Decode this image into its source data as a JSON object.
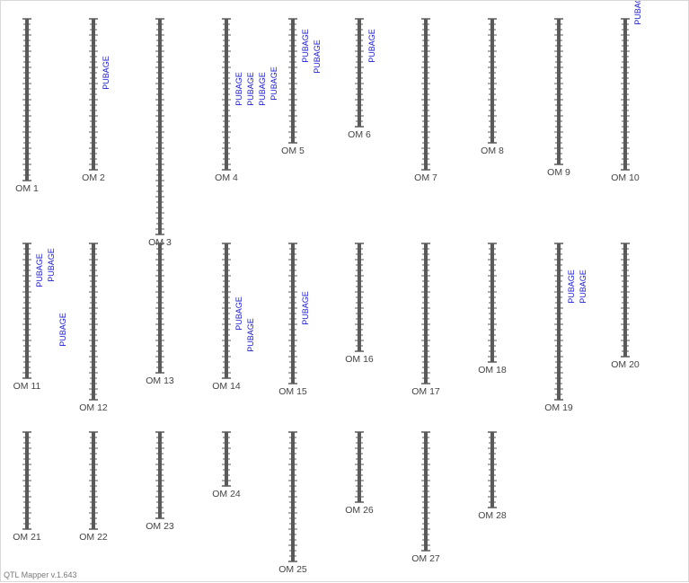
{
  "colors": {
    "chromosome": "#5a5a5a",
    "qtl_label": "#1a1adb",
    "label": "#444444"
  },
  "footer": "QTL Mapper v.1.643",
  "linkage_groups": [
    {
      "name": "OM 1",
      "length": 30,
      "qtls": []
    },
    {
      "name": "OM 2",
      "length": 28,
      "qtls": [
        {
          "label": "PUBAGE",
          "pos": 10,
          "lane": 0
        }
      ]
    },
    {
      "name": "OM 3",
      "length": 40,
      "qtls": []
    },
    {
      "name": "OM 4",
      "length": 28,
      "qtls": [
        {
          "label": "PUBAGE",
          "pos": 13,
          "lane": 0
        },
        {
          "label": "PUBAGE",
          "pos": 13,
          "lane": 1
        },
        {
          "label": "PUBAGE",
          "pos": 13,
          "lane": 2
        },
        {
          "label": "PUBAGE",
          "pos": 12,
          "lane": 3
        }
      ]
    },
    {
      "name": "OM 5",
      "length": 23,
      "qtls": [
        {
          "label": "PUBAGE",
          "pos": 5,
          "lane": 0
        },
        {
          "label": "PUBAGE",
          "pos": 7,
          "lane": 1
        }
      ]
    },
    {
      "name": "OM 6",
      "length": 20,
      "qtls": [
        {
          "label": "PUBAGE",
          "pos": 5,
          "lane": 0
        }
      ]
    },
    {
      "name": "OM 7",
      "length": 28,
      "qtls": []
    },
    {
      "name": "OM 8",
      "length": 23,
      "qtls": []
    },
    {
      "name": "OM 9",
      "length": 27,
      "qtls": []
    },
    {
      "name": "OM 10",
      "length": 28,
      "qtls": [
        {
          "label": "PUBAGE",
          "pos": -2,
          "lane": 0
        }
      ]
    },
    {
      "name": "OM 11",
      "length": 25,
      "qtls": [
        {
          "label": "PUBAGE",
          "pos": 5,
          "lane": 0
        },
        {
          "label": "PUBAGE",
          "pos": 4,
          "lane": 1
        },
        {
          "label": "PUBAGE",
          "pos": 16,
          "lane": 2
        }
      ]
    },
    {
      "name": "OM 12",
      "length": 29,
      "qtls": []
    },
    {
      "name": "OM 13",
      "length": 24,
      "qtls": []
    },
    {
      "name": "OM 14",
      "length": 25,
      "qtls": [
        {
          "label": "PUBAGE",
          "pos": 13,
          "lane": 0
        },
        {
          "label": "PUBAGE",
          "pos": 17,
          "lane": 1
        }
      ]
    },
    {
      "name": "OM 15",
      "length": 26,
      "qtls": [
        {
          "label": "PUBAGE",
          "pos": 12,
          "lane": 0
        }
      ]
    },
    {
      "name": "OM 16",
      "length": 20,
      "qtls": []
    },
    {
      "name": "OM 17",
      "length": 26,
      "qtls": []
    },
    {
      "name": "OM 18",
      "length": 22,
      "qtls": []
    },
    {
      "name": "OM 19",
      "length": 29,
      "qtls": [
        {
          "label": "PUBAGE",
          "pos": 8,
          "lane": 0
        },
        {
          "label": "PUBAGE",
          "pos": 8,
          "lane": 1
        }
      ]
    },
    {
      "name": "OM 20",
      "length": 21,
      "qtls": []
    },
    {
      "name": "OM 21",
      "length": 18,
      "qtls": []
    },
    {
      "name": "OM 22",
      "length": 18,
      "qtls": []
    },
    {
      "name": "OM 23",
      "length": 16,
      "qtls": []
    },
    {
      "name": "OM 24",
      "length": 10,
      "qtls": []
    },
    {
      "name": "OM 25",
      "length": 24,
      "qtls": []
    },
    {
      "name": "OM 26",
      "length": 13,
      "qtls": []
    },
    {
      "name": "OM 27",
      "length": 22,
      "qtls": []
    },
    {
      "name": "OM 28",
      "length": 14,
      "qtls": []
    }
  ]
}
